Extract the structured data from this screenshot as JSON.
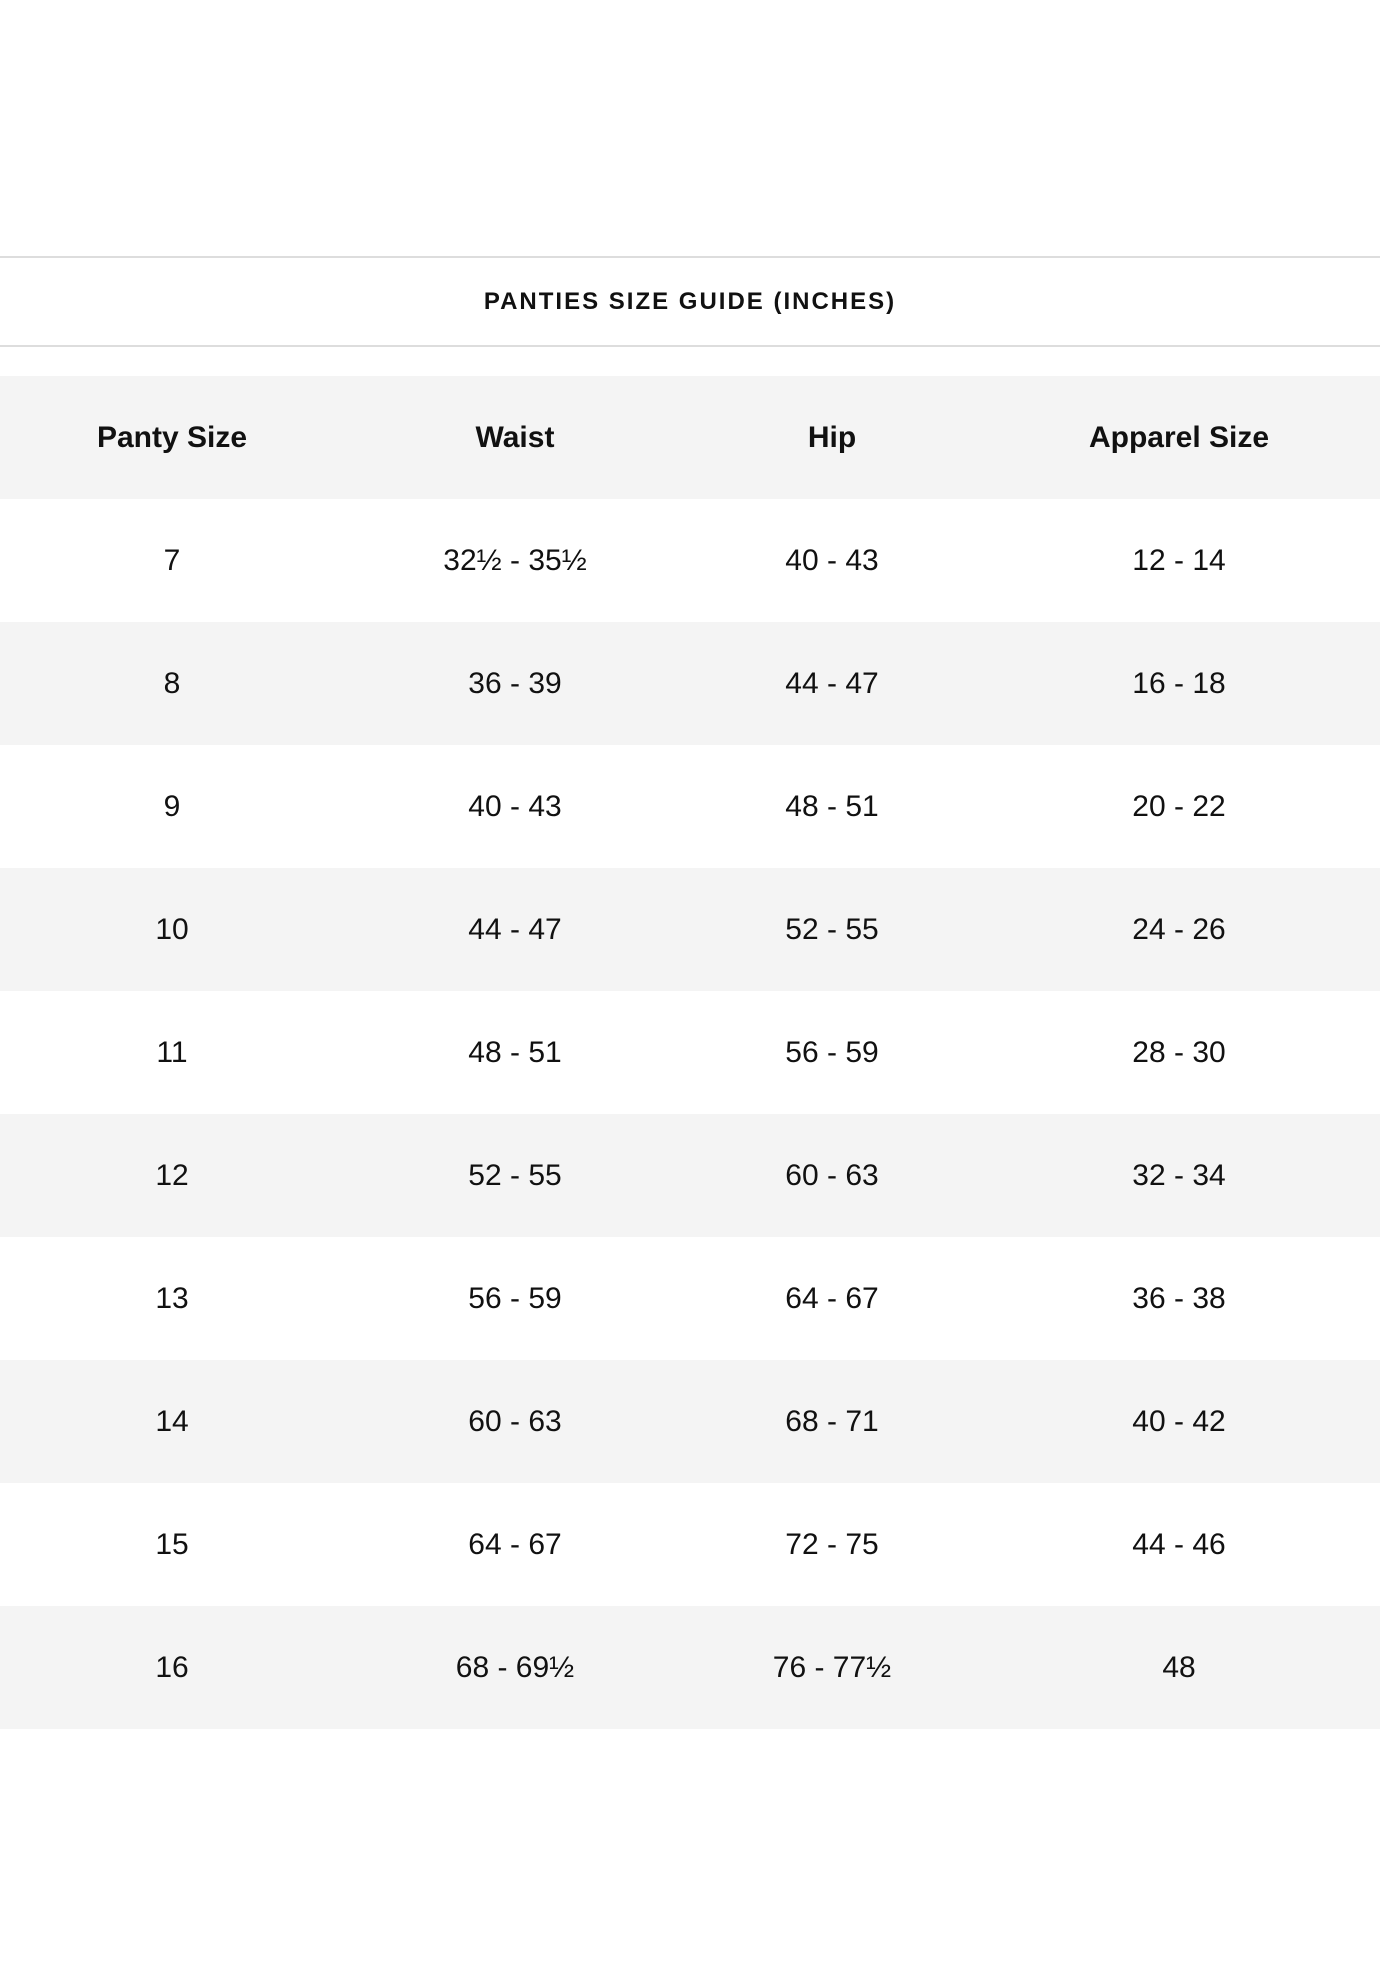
{
  "title": "PANTIES SIZE GUIDE (INCHES)",
  "table": {
    "headers": [
      "Panty Size",
      "Waist",
      "Hip",
      "Apparel Size"
    ],
    "rows": [
      [
        "7",
        "32½ - 35½",
        "40 - 43",
        "12 - 14"
      ],
      [
        "8",
        "36 - 39",
        "44 - 47",
        "16 - 18"
      ],
      [
        "9",
        "40 - 43",
        "48 - 51",
        "20 - 22"
      ],
      [
        "10",
        "44 - 47",
        "52 - 55",
        "24 - 26"
      ],
      [
        "11",
        "48 - 51",
        "56 - 59",
        "28 - 30"
      ],
      [
        "12",
        "52 - 55",
        "60 - 63",
        "32 - 34"
      ],
      [
        "13",
        "56 - 59",
        "64 - 67",
        "36 - 38"
      ],
      [
        "14",
        "60 - 63",
        "68 - 71",
        "40 - 42"
      ],
      [
        "15",
        "64 - 67",
        "72 - 75",
        "44 - 46"
      ],
      [
        "16",
        "68 - 69½",
        "76 - 77½",
        "48"
      ]
    ]
  },
  "colors": {
    "stripe": "#f4f4f4",
    "divider": "#dddddd",
    "text": "#111111"
  }
}
